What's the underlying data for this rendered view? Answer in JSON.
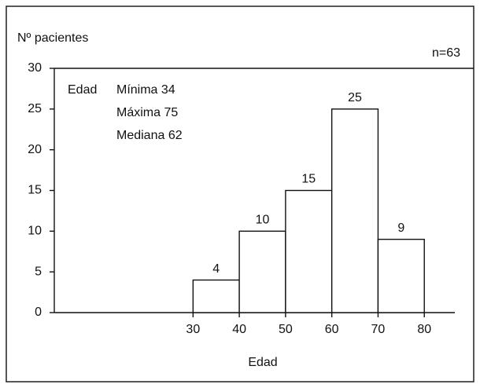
{
  "chart_data": {
    "type": "histogram",
    "ylabel": "Nº pacientes",
    "xlabel": "Edad",
    "note": "n=63",
    "annotation": {
      "label": "Edad",
      "lines": [
        "Mínima 34",
        "Máxima 75",
        "Mediana 62"
      ]
    },
    "bins": [
      30,
      40,
      50,
      60,
      70,
      80
    ],
    "values": [
      4,
      10,
      15,
      25,
      9
    ],
    "color": "#ffffff",
    "xlim": [
      0,
      90
    ],
    "xticks": [
      30,
      40,
      50,
      60,
      70,
      80
    ],
    "ylim": [
      0,
      30
    ],
    "yticks": [
      0,
      5,
      10,
      15,
      20,
      25,
      30
    ]
  }
}
